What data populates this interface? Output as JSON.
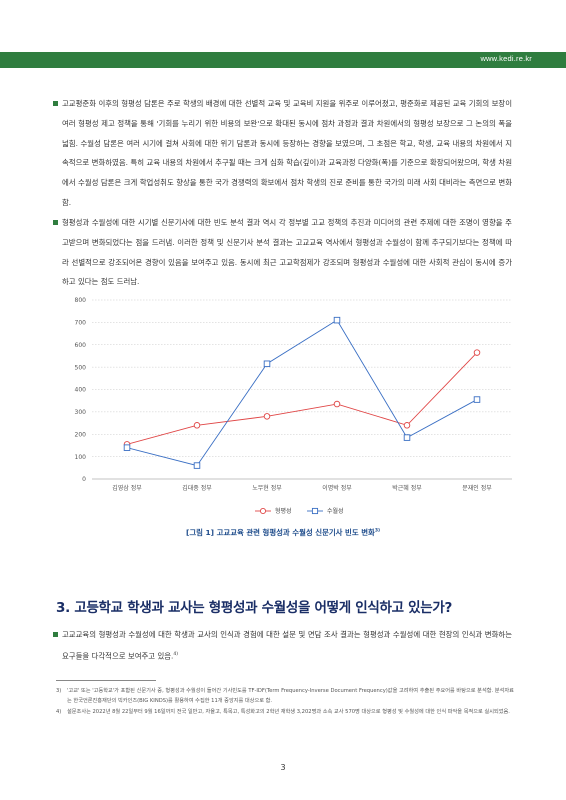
{
  "header": {
    "url": "www.kedi.re.kr"
  },
  "paragraphs": {
    "p1": "고교평준화 이후의 형평성 담론은 주로 학생의 배경에 대한 선별적 교육 및 교육비 지원을 위주로 이루어졌고, 평준화로 제공된 교육 기회의 보장이 여러 형평성 제고 정책을 통해 '기회를 누리기 위한 비용의 보완'으로 확대된 동시에 점차 과정과 결과 차원에서의 형평성 보장으로 그 논의의 폭을 넓힘. 수월성 담론은 여러 시기에 걸쳐 사회에 대한 위기 담론과 동시에 등장하는 경향을 보였으며, 그 초점은 학교, 학생, 교육 내용의 차원에서 지속적으로 변화하였음. 특히 교육 내용의 차원에서 추구될 때는 크게 심화 학습(깊이)과 교육과정 다양화(폭)를 기준으로 확장되어왔으며, 학생 차원에서 수월성 담론은 크게 학업성취도 향상을 통한 국가 경쟁력의 확보에서 점차 학생의 진로 준비를 통한 국가의 미래 사회 대비라는 측면으로 변화함.",
    "p2": "형평성과 수월성에 대한 시기별 신문기사에 대한 빈도 분석 결과 역시 각 정부별 고교 정책의 추진과 미디어의 관련 주제에 대한 조명이 영향을 주고받으며 변화되었다는 점을 드러냄. 이러한 정책 및 신문기사 분석 결과는 고교교육 역사에서 형평성과 수월성이 함께 추구되기보다는 정책에 따라 선별적으로 강조되어온 경향이 있음을 보여주고 있음. 동시에 최근 고교학점제가 강조되며 형평성과 수월성에 대한 사회적 관심이 동시에 증가하고 있다는 점도 드러남.",
    "p3": "고교교육의 형평성과 수월성에 대한 학생과 교사의 인식과 경험에 대한 설문 및 면담 조사 결과는 형평성과 수월성에 대한 현장의 인식과 변화하는 요구들을 다각적으로 보여주고 있음.",
    "p3_sup": "4)"
  },
  "chart_data": {
    "type": "line",
    "categories": [
      "김영삼 정부",
      "김대중 정부",
      "노무현 정부",
      "이명박 정부",
      "박근혜 정부",
      "문재인 정부"
    ],
    "series": [
      {
        "name": "형평성",
        "values": [
          155,
          240,
          280,
          335,
          240,
          565
        ],
        "color": "#e04646",
        "marker": "circle"
      },
      {
        "name": "수월성",
        "values": [
          140,
          60,
          515,
          710,
          185,
          355
        ],
        "color": "#3a6fc4",
        "marker": "square"
      }
    ],
    "yticks": [
      "0",
      "100",
      "200",
      "300",
      "400",
      "500",
      "600",
      "700",
      "800"
    ],
    "ylim": [
      0,
      800
    ],
    "grid": true,
    "legend": "bottom"
  },
  "figure": {
    "caption": "[그림 1] 고교교육 관련 형평성과 수월성 신문기사 빈도 변화",
    "caption_sup": "3)"
  },
  "section": {
    "heading": "3. 고등학교 학생과 교사는 형평성과 수월성을 어떻게 인식하고 있는가?"
  },
  "footnotes": [
    {
      "num": "3)",
      "text": "'고교' 또는 '고등학교'가 포함된 신문기사 중, 형평성과 수월성이 들어간 기사빈도를 TF-IDF(Term Frequency-Inverse Document Frequency)값을 고려하여 추출된 주요어를 바탕으로 분석함. 분석자료는 한국언론진흥재단의 빅카인즈(BIG KINDS)를 활용하여 수집한 11개 중앙지를 대상으로 함."
    },
    {
      "num": "4)",
      "text": "설문조사는 2022년 8월 22일부터 9월 16일까지 전국 일반고, 자율고, 특목고, 특성화고의 2학년 재학생 3,202명과 소속 교사 570명 대상으로 형평성 및 수월성에 대한 인식 파악을 목적으로 실시되었음."
    }
  ],
  "page_number": "3"
}
